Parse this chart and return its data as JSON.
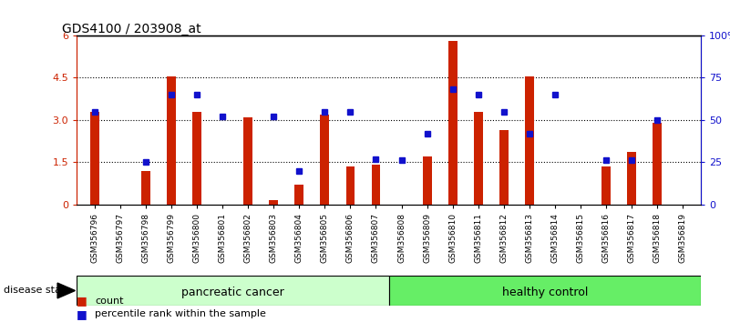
{
  "title": "GDS4100 / 203908_at",
  "samples": [
    "GSM356796",
    "GSM356797",
    "GSM356798",
    "GSM356799",
    "GSM356800",
    "GSM356801",
    "GSM356802",
    "GSM356803",
    "GSM356804",
    "GSM356805",
    "GSM356806",
    "GSM356807",
    "GSM356808",
    "GSM356809",
    "GSM356810",
    "GSM356811",
    "GSM356812",
    "GSM356813",
    "GSM356814",
    "GSM356815",
    "GSM356816",
    "GSM356817",
    "GSM356818",
    "GSM356819"
  ],
  "count_values": [
    3.3,
    0.0,
    1.2,
    4.55,
    3.3,
    0.0,
    3.1,
    0.15,
    0.7,
    3.2,
    1.35,
    1.4,
    0.0,
    1.7,
    5.8,
    3.3,
    2.65,
    4.55,
    0.0,
    0.0,
    1.35,
    1.85,
    2.9,
    0.0
  ],
  "percentile_values": [
    55,
    0,
    25,
    65,
    65,
    52,
    0,
    52,
    20,
    55,
    55,
    27,
    26,
    42,
    68,
    65,
    55,
    42,
    65,
    0,
    26,
    26,
    50,
    0
  ],
  "group_labels": [
    "pancreatic cancer",
    "healthy control"
  ],
  "group_split": 12,
  "n_samples": 24,
  "group_color_left": "#ccffcc",
  "group_color_right": "#66ee66",
  "bar_color": "#cc2200",
  "dot_color": "#1111cc",
  "left_yticks": [
    0,
    1.5,
    3.0,
    4.5,
    6
  ],
  "right_yticks": [
    0,
    25,
    50,
    75,
    100
  ],
  "right_yticklabels": [
    "0",
    "25",
    "50",
    "75",
    "100%"
  ],
  "ylim_left": [
    0,
    6
  ],
  "ylim_right": [
    0,
    100
  ],
  "tick_label_bg": "#dddddd",
  "plot_bg": "#ffffff"
}
